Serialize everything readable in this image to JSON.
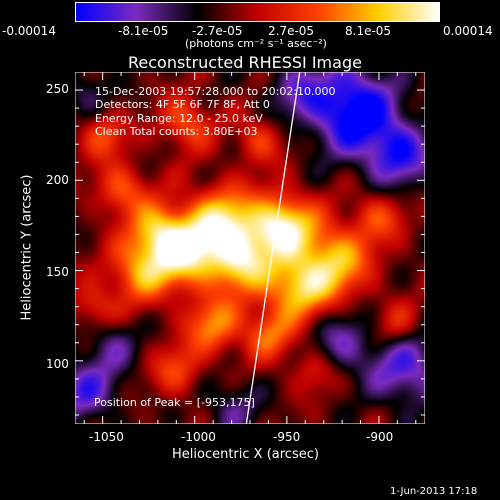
{
  "colorbar": {
    "tick_labels": [
      "-0.00014",
      "-8.1e-05",
      "-2.7e-05",
      "2.7e-05",
      "8.1e-05",
      "0.00014"
    ],
    "unit_label": "(photons cm⁻² s⁻¹ asec⁻²)"
  },
  "plot": {
    "title": "Reconstructed RHESSI Image",
    "info_lines": [
      "15-Dec-2003 19:57:28.000 to 20:02:10.000",
      "Detectors: 4F 5F 6F 7F 8F, Att 0",
      "Energy Range: 12.0 - 25.0 keV",
      "Clean    Total counts: 3.80E+03"
    ],
    "peak_text": "Position of Peak = [-953,175]",
    "xlabel": "Heliocentric X (arcsec)",
    "ylabel": "Heliocentric Y (arcsec)",
    "xticks": [
      "-1050",
      "-1000",
      "-950",
      "-900"
    ],
    "yticks": [
      "250",
      "200",
      "150",
      "100"
    ],
    "timestamp": "1-Jun-2013 17:18"
  },
  "image_meta": {
    "xlim": [
      -1065,
      -875
    ],
    "ylim": [
      65,
      260
    ],
    "peak": [
      -953,
      175
    ],
    "limb_line": [
      [
        -972,
        65
      ],
      [
        -943,
        260
      ]
    ],
    "colormap": [
      "#0000ff",
      "#7b2bbf",
      "#000000",
      "#c00000",
      "#ff4000",
      "#ffd000",
      "#ffffff"
    ]
  },
  "chart_data": {
    "type": "heatmap",
    "title": "Reconstructed RHESSI Image",
    "xlabel": "Heliocentric X (arcsec)",
    "ylabel": "Heliocentric Y (arcsec)",
    "xlim": [
      -1065,
      -875
    ],
    "ylim": [
      65,
      260
    ],
    "value_range": [
      -0.00014,
      0.00014
    ],
    "peak": {
      "x": -953,
      "y": 175
    }
  }
}
